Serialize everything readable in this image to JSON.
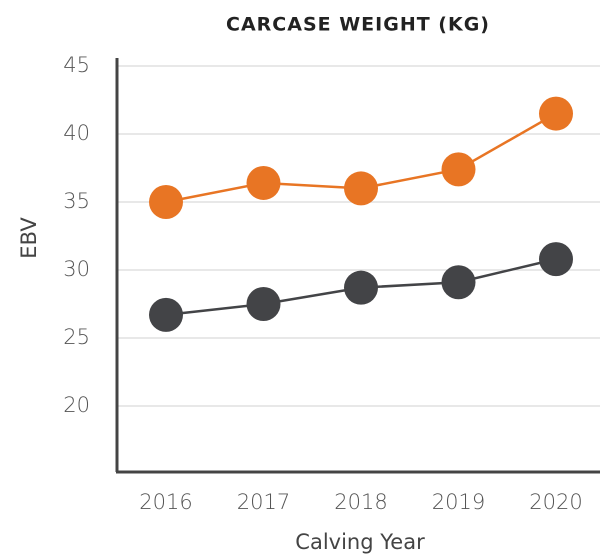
{
  "chart_data": {
    "type": "line",
    "title": "CARCASE WEIGHT (KG)",
    "x_label": "Calving Year",
    "y_label": "EBV",
    "categories": [
      "2016",
      "2017",
      "2018",
      "2019",
      "2020"
    ],
    "series": [
      {
        "color": "#e87524",
        "values": [
          35.0,
          36.4,
          36.0,
          37.4,
          41.5
        ]
      },
      {
        "color": "#434447",
        "values": [
          26.7,
          27.5,
          28.7,
          29.1,
          30.8
        ]
      }
    ],
    "ylim": [
      15,
      45
    ],
    "yticks": [
      20,
      25,
      30,
      35,
      40,
      45
    ],
    "grid": true
  }
}
